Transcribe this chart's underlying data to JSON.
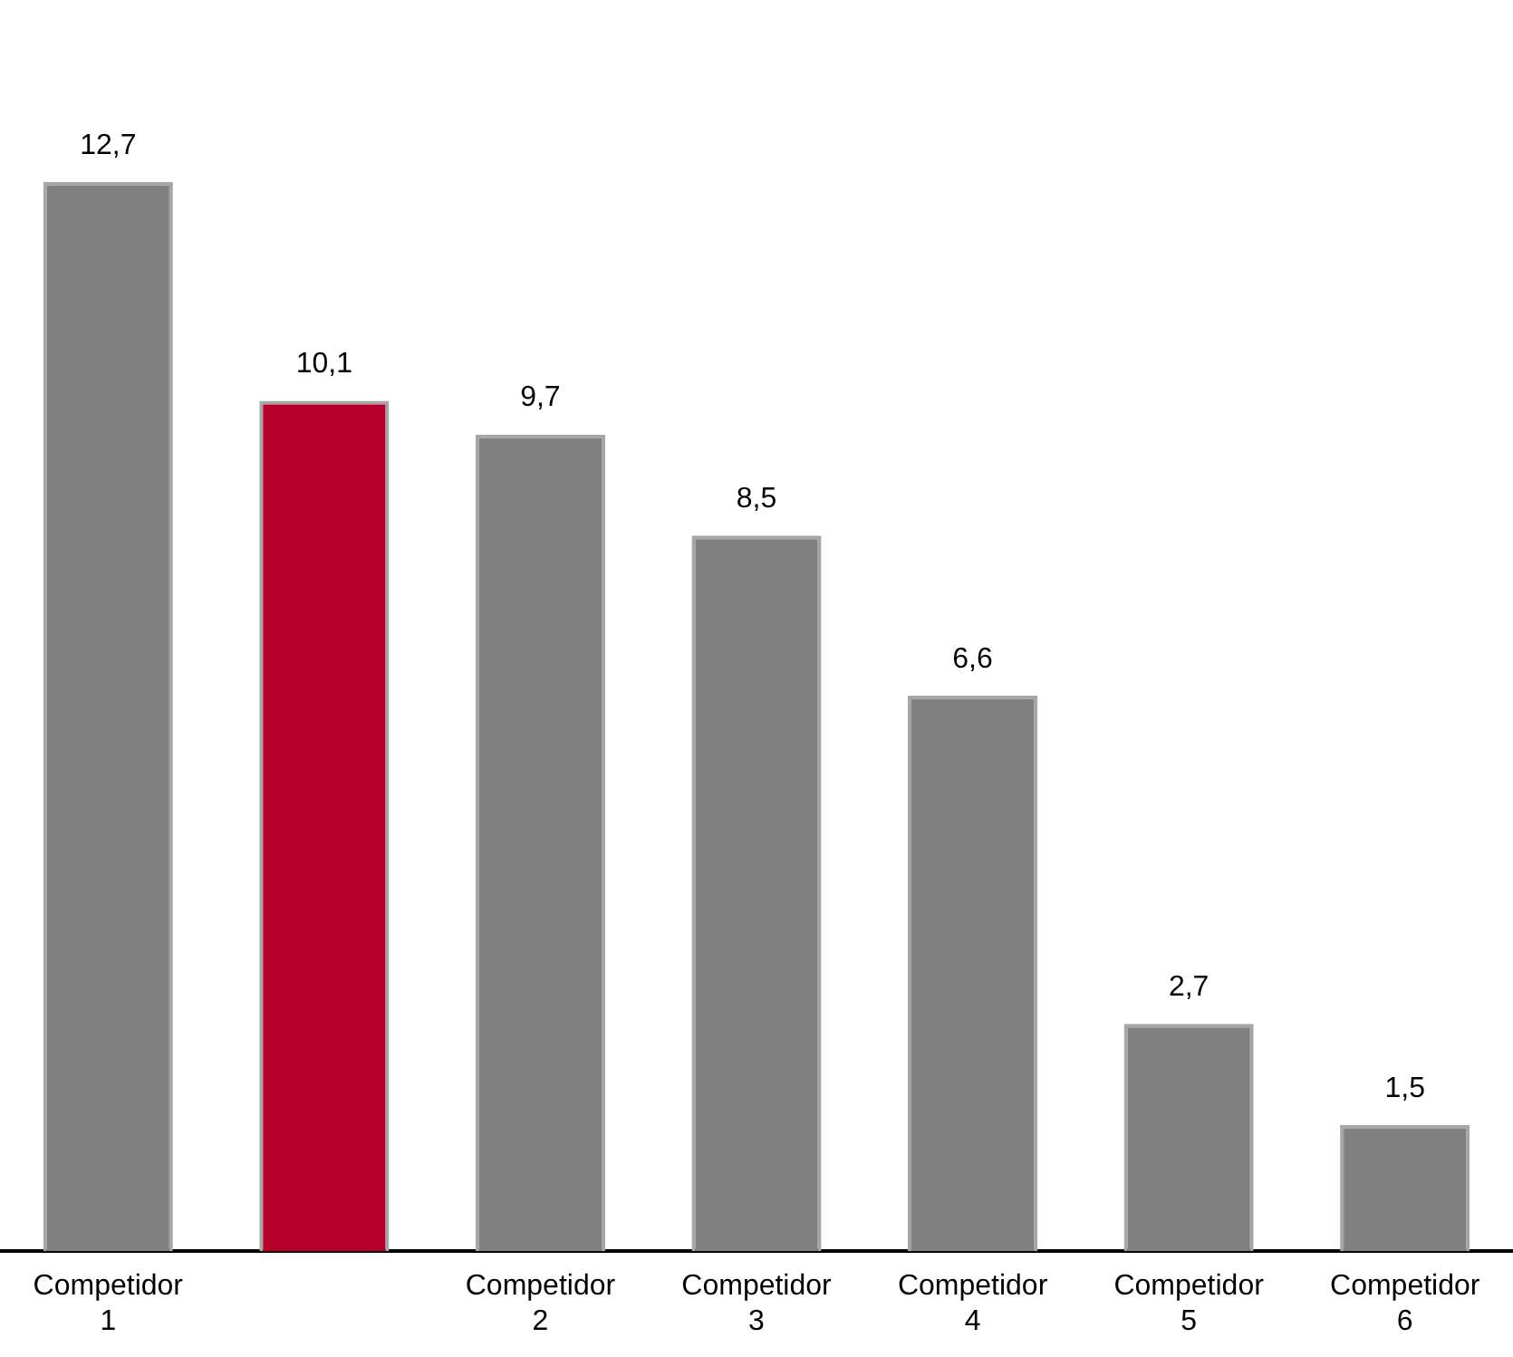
{
  "chart_data": {
    "type": "bar",
    "categories": [
      "Competidor 1",
      null,
      "Competidor 2",
      "Competidor 3",
      "Competidor 4",
      "Competidor 5",
      "Competidor 6"
    ],
    "values": [
      12.7,
      10.1,
      9.7,
      8.5,
      6.6,
      2.7,
      1.5
    ],
    "colors": [
      "#808080",
      "#b5002a",
      "#808080",
      "#808080",
      "#808080",
      "#808080",
      "#808080"
    ],
    "value_labels": [
      "12,7",
      "10,1",
      "9,7",
      "8,5",
      "6,6",
      "2,7",
      "1,5"
    ],
    "grid": false,
    "legend": false
  }
}
